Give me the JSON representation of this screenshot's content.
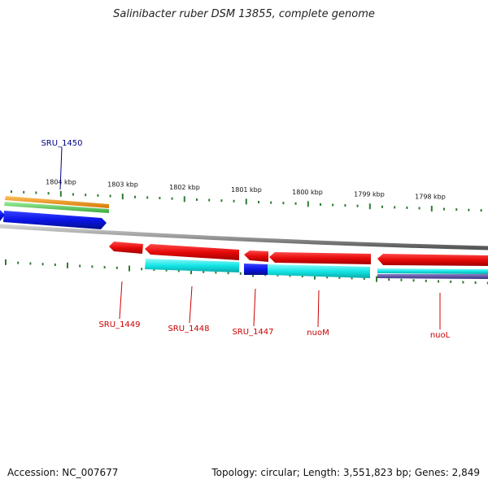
{
  "title": "Salinibacter ruber DSM 13855, complete genome",
  "footer": {
    "accession": "Accession: NC_007677",
    "topology": "Topology: circular; Length: 3,551,823 bp; Genes: 2,849"
  },
  "kbp_labels": [
    "1804 kbp",
    "1803 kbp",
    "1802 kbp",
    "1801 kbp",
    "1800 kbp",
    "1799 kbp",
    "1798 kbp"
  ],
  "colors": {
    "backbone": "#888888",
    "ticks": "#2e7d32",
    "forward_label": "#000080",
    "reverse_label": "#cc0000",
    "orange_track": "#f0960a",
    "green_track": "#5ac85a",
    "blue_gene": "#0a14e6",
    "red_gene": "#e60a0a",
    "cyan_track": "#14e6e6",
    "dark_blue_block": "#0a0ae6",
    "purple_track": "#5a4aa0"
  },
  "genes": {
    "forward": [
      {
        "label": "SRU_1450"
      }
    ],
    "reverse": [
      {
        "label": "SRU_1449"
      },
      {
        "label": "SRU_1448"
      },
      {
        "label": "SRU_1447"
      },
      {
        "label": "nuoM"
      },
      {
        "label": "nuoL"
      }
    ]
  }
}
